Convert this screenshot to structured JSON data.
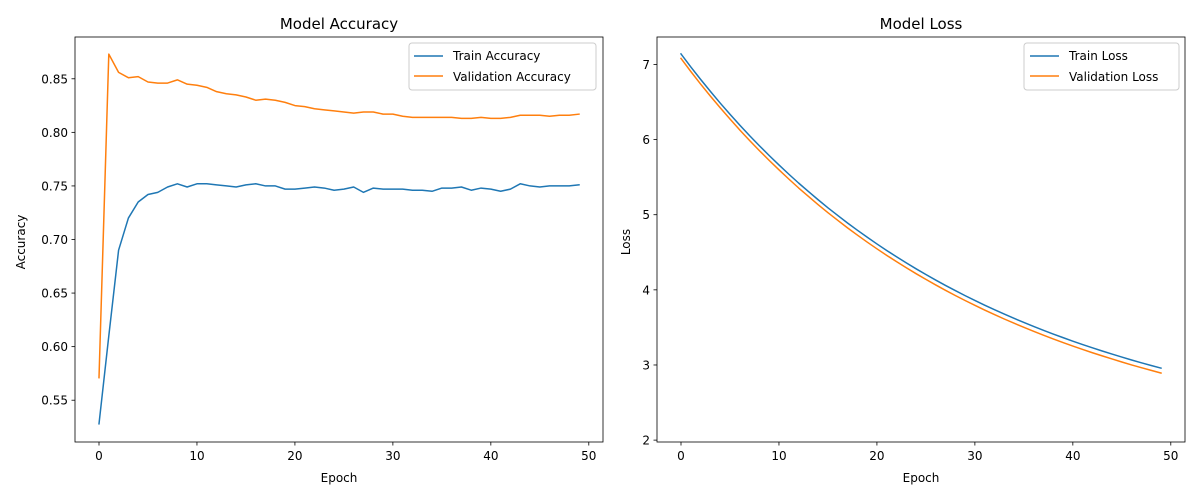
{
  "colors": {
    "train": "#1f77b4",
    "validation": "#ff7f0e",
    "axes": "#000000",
    "legend_border": "#cccccc"
  },
  "chart_data": [
    {
      "type": "line",
      "title": "Model Accuracy",
      "xlabel": "Epoch",
      "ylabel": "Accuracy",
      "xlim": [
        -2.45,
        51.45
      ],
      "ylim": [
        0.511,
        0.889
      ],
      "xticks": [
        0,
        10,
        20,
        30,
        40,
        50
      ],
      "yticks": [
        0.55,
        0.6,
        0.65,
        0.7,
        0.75,
        0.8,
        0.85
      ],
      "ytick_labels": [
        "0.55",
        "0.60",
        "0.65",
        "0.70",
        "0.75",
        "0.80",
        "0.85"
      ],
      "grid": false,
      "legend": "upper-right",
      "x": [
        0,
        1,
        2,
        3,
        4,
        5,
        6,
        7,
        8,
        9,
        10,
        11,
        12,
        13,
        14,
        15,
        16,
        17,
        18,
        19,
        20,
        21,
        22,
        23,
        24,
        25,
        26,
        27,
        28,
        29,
        30,
        31,
        32,
        33,
        34,
        35,
        36,
        37,
        38,
        39,
        40,
        41,
        42,
        43,
        44,
        45,
        46,
        47,
        48,
        49
      ],
      "series": [
        {
          "name": "Train Accuracy",
          "color": "#1f77b4",
          "values": [
            0.528,
            0.61,
            0.69,
            0.72,
            0.735,
            0.742,
            0.744,
            0.749,
            0.752,
            0.749,
            0.752,
            0.752,
            0.751,
            0.75,
            0.749,
            0.751,
            0.752,
            0.75,
            0.75,
            0.747,
            0.747,
            0.748,
            0.749,
            0.748,
            0.746,
            0.747,
            0.749,
            0.744,
            0.748,
            0.747,
            0.747,
            0.747,
            0.746,
            0.746,
            0.745,
            0.748,
            0.748,
            0.749,
            0.746,
            0.748,
            0.747,
            0.745,
            0.747,
            0.752,
            0.75,
            0.749,
            0.75,
            0.75,
            0.75,
            0.751
          ]
        },
        {
          "name": "Validation Accuracy",
          "color": "#ff7f0e",
          "values": [
            0.571,
            0.873,
            0.856,
            0.851,
            0.852,
            0.847,
            0.846,
            0.846,
            0.849,
            0.845,
            0.844,
            0.842,
            0.838,
            0.836,
            0.835,
            0.833,
            0.83,
            0.831,
            0.83,
            0.828,
            0.825,
            0.824,
            0.822,
            0.821,
            0.82,
            0.819,
            0.818,
            0.819,
            0.819,
            0.817,
            0.817,
            0.815,
            0.814,
            0.814,
            0.814,
            0.814,
            0.814,
            0.813,
            0.813,
            0.814,
            0.813,
            0.813,
            0.814,
            0.816,
            0.816,
            0.816,
            0.815,
            0.816,
            0.816,
            0.817
          ]
        }
      ]
    },
    {
      "type": "line",
      "title": "Model Loss",
      "xlabel": "Epoch",
      "ylabel": "Loss",
      "xlim": [
        -2.45,
        51.45
      ],
      "ylim": [
        1.975,
        7.365
      ],
      "xticks": [
        0,
        10,
        20,
        30,
        40,
        50
      ],
      "yticks": [
        2,
        3,
        4,
        5,
        6,
        7
      ],
      "ytick_labels": [
        "2",
        "3",
        "4",
        "5",
        "6",
        "7"
      ],
      "grid": false,
      "legend": "upper-right",
      "x": [
        0,
        1,
        2,
        3,
        4,
        5,
        6,
        7,
        8,
        9,
        10,
        11,
        12,
        13,
        14,
        15,
        16,
        17,
        18,
        19,
        20,
        21,
        22,
        23,
        24,
        25,
        26,
        27,
        28,
        29,
        30,
        31,
        32,
        33,
        34,
        35,
        36,
        37,
        38,
        39,
        40,
        41,
        42,
        43,
        44,
        45,
        46,
        47,
        48,
        49
      ],
      "series": [
        {
          "name": "Train Loss",
          "color": "#1f77b4",
          "values": [
            7.14,
            6.967,
            6.801,
            6.641,
            6.486,
            6.337,
            6.192,
            6.052,
            5.918,
            5.788,
            5.662,
            5.54,
            5.422,
            5.309,
            5.199,
            5.092,
            4.99,
            4.89,
            4.794,
            4.701,
            4.611,
            4.524,
            4.44,
            4.359,
            4.28,
            4.204,
            4.13,
            4.059,
            3.99,
            3.923,
            3.859,
            3.796,
            3.736,
            3.677,
            3.621,
            3.566,
            3.513,
            3.462,
            3.412,
            3.364,
            3.317,
            3.272,
            3.228,
            3.186,
            3.145,
            3.105,
            3.066,
            3.029,
            2.993,
            2.958
          ]
        },
        {
          "name": "Validation Loss",
          "color": "#ff7f0e",
          "values": [
            7.08,
            6.906,
            6.739,
            6.578,
            6.423,
            6.273,
            6.128,
            5.988,
            5.853,
            5.723,
            5.597,
            5.475,
            5.357,
            5.244,
            5.134,
            5.027,
            4.925,
            4.825,
            4.729,
            4.636,
            4.546,
            4.459,
            4.375,
            4.294,
            4.215,
            4.139,
            4.065,
            3.994,
            3.925,
            3.858,
            3.794,
            3.731,
            3.671,
            3.612,
            3.556,
            3.501,
            3.448,
            3.397,
            3.347,
            3.299,
            3.252,
            3.207,
            3.163,
            3.121,
            3.08,
            3.04,
            3.001,
            2.964,
            2.928,
            2.893
          ]
        }
      ]
    }
  ]
}
